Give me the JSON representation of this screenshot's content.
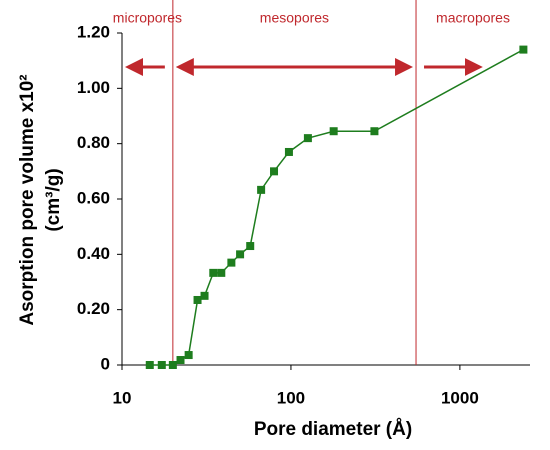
{
  "chart_data": {
    "type": "line",
    "xlabel": "Pore diameter (Å)",
    "ylabel": [
      "Asorption pore volume x10²",
      "(cm³/g)"
    ],
    "x": [
      14.6,
      17.2,
      20,
      22.2,
      24.8,
      28,
      30.8,
      34.7,
      38.7,
      44.4,
      50,
      57.4,
      66.6,
      79.4,
      97.3,
      126,
      179,
      312,
      2376
    ],
    "series": [
      {
        "name": "pore volume",
        "color": "#1e7d1e",
        "values": [
          0,
          0,
          0,
          0.018,
          0.036,
          0.235,
          0.25,
          0.333,
          0.333,
          0.37,
          0.4,
          0.43,
          0.633,
          0.7,
          0.77,
          0.82,
          0.845,
          0.845,
          1.14
        ]
      }
    ],
    "xscale": "log",
    "xlim": [
      10,
      2600
    ],
    "xticks": [
      10,
      100,
      1000
    ],
    "ylim": [
      0,
      1.2
    ],
    "yticks": [
      0,
      {
        "value": 0.2,
        "label": "0.20"
      },
      {
        "value": 0.4,
        "label": "0.40"
      },
      {
        "value": 0.6,
        "label": "0.60"
      },
      {
        "value": 0.8,
        "label": "0.80"
      },
      {
        "value": 1.0,
        "label": "1.00"
      },
      {
        "value": 1.2,
        "label": "1.20"
      }
    ],
    "regions": [
      "micropores",
      "mesopores",
      "macropores"
    ],
    "region_boundaries": [
      20,
      550
    ],
    "region_color": "#c0282d"
  }
}
